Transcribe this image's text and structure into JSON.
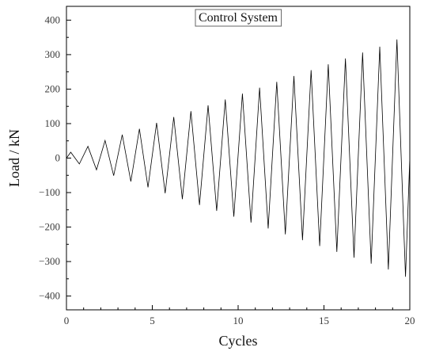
{
  "chart_data": {
    "type": "line",
    "title": "Control System",
    "xlabel": "Cycles",
    "ylabel": "Load / kN",
    "xlim": [
      0,
      20
    ],
    "ylim": [
      -440,
      440
    ],
    "xticks": [
      0,
      5,
      10,
      15,
      20
    ],
    "yticks": [
      400,
      300,
      200,
      100,
      0,
      -100,
      -200,
      -300,
      -400
    ],
    "ytick_labels": [
      "400",
      "300",
      "200",
      "100",
      "0",
      "−100",
      "−200",
      "−300",
      "−400"
    ],
    "grid": false,
    "legend": "none",
    "line_color": "#000000",
    "series": [
      {
        "x": [
          0,
          0.25,
          0.75,
          1.25,
          1.75,
          2.25,
          2.75,
          3.25,
          3.75,
          4.25,
          4.75,
          5.25,
          5.75,
          6.25,
          6.75,
          7.25,
          7.75,
          8.25,
          8.75,
          9.25,
          9.75,
          10.25,
          10.75,
          11.25,
          11.75,
          12.25,
          12.75,
          13.25,
          13.75,
          14.25,
          14.75,
          15.25,
          15.75,
          16.25,
          16.75,
          17.25,
          17.75,
          18.25,
          18.75,
          19.25,
          19.75,
          20.0
        ],
        "y": [
          0,
          17,
          -17,
          34,
          -34,
          51,
          -51,
          68,
          -68,
          85,
          -85,
          102,
          -102,
          119,
          -119,
          136,
          -136,
          153,
          -153,
          170,
          -170,
          187,
          -187,
          204,
          -204,
          221,
          -221,
          238,
          -238,
          255,
          -255,
          272,
          -272,
          289,
          -289,
          306,
          -306,
          323,
          -323,
          344,
          -344,
          0
        ]
      }
    ]
  }
}
